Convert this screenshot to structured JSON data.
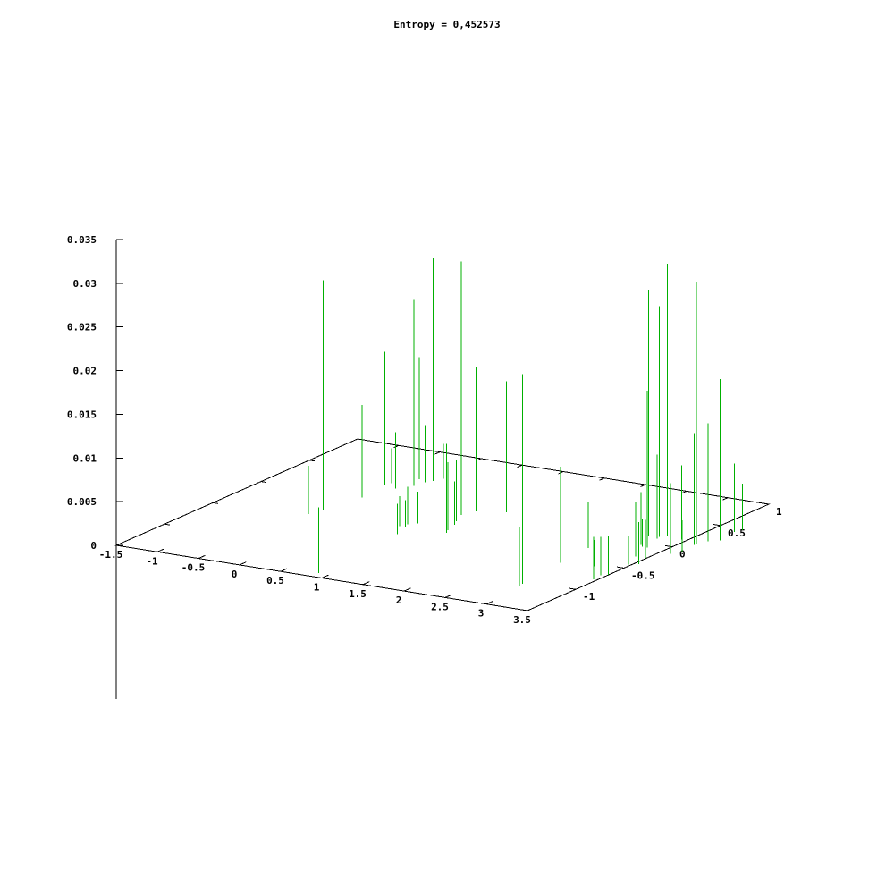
{
  "chart_data": {
    "type": "impulse-3d",
    "title": "Entropy = 0,452573",
    "xlabel": "",
    "ylabel": "",
    "zlabel": "",
    "x_ticks": [
      -1.5,
      -1,
      -0.5,
      0,
      0.5,
      1,
      1.5,
      2,
      2.5,
      3,
      3.5
    ],
    "x_tick_labels": [
      "-1.5",
      "-1",
      "-0.5",
      "0",
      "0.5",
      "1",
      "1.5",
      "2",
      "2.5",
      "3",
      "3.5"
    ],
    "y_ticks": [
      -1.5,
      -1,
      -0.5,
      0,
      0.5,
      1
    ],
    "y_tick_labels": [
      "",
      "-1",
      "-0.5",
      "0",
      "0.5",
      "1"
    ],
    "z_ticks": [
      0,
      0.005,
      0.01,
      0.015,
      0.02,
      0.025,
      0.03,
      0.035
    ],
    "z_tick_labels": [
      "0",
      "0.005",
      "0.01",
      "0.015",
      "0.02",
      "0.025",
      "0.03",
      "0.035"
    ],
    "xlim": [
      -1.5,
      3.5
    ],
    "ylim": [
      -1.5,
      1
    ],
    "zlim": [
      0,
      0.035
    ],
    "series": [
      {
        "color": "#00b000",
        "points": [
          {
            "x": 0.87,
            "y": -1.42,
            "z": 0.0075
          },
          {
            "x": -0.37,
            "y": -0.32,
            "z": 0.0263
          },
          {
            "x": -0.42,
            "y": -0.43,
            "z": 0.0055
          },
          {
            "x": -0.27,
            "y": 0.0,
            "z": 0.0106
          },
          {
            "x": -0.31,
            "y": 0.27,
            "z": 0.0153
          },
          {
            "x": -0.3,
            "y": 0.33,
            "z": 0.004
          },
          {
            "x": -0.16,
            "y": 0.25,
            "z": 0.0064
          },
          {
            "x": -0.13,
            "y": 0.47,
            "z": 0.014
          },
          {
            "x": -0.04,
            "y": 0.34,
            "z": 0.0213
          },
          {
            "x": -0.02,
            "y": 0.44,
            "z": 0.0065
          },
          {
            "x": 0.03,
            "y": 0.48,
            "z": 0.0255
          },
          {
            "x": 0.07,
            "y": 0.55,
            "z": 0.004
          },
          {
            "x": 0.64,
            "y": -0.39,
            "z": 0.0034
          },
          {
            "x": 0.68,
            "y": -0.34,
            "z": 0.0043
          },
          {
            "x": 0.7,
            "y": -0.38,
            "z": 0.003
          },
          {
            "x": 0.8,
            "y": 0.01,
            "z": 0.0183
          },
          {
            "x": 0.75,
            "y": -0.29,
            "z": 0.0036
          },
          {
            "x": 0.79,
            "y": -0.54,
            "z": 0.0035
          },
          {
            "x": 0.97,
            "y": -0.03,
            "z": 0.029
          },
          {
            "x": 1.05,
            "y": -0.15,
            "z": 0.007
          },
          {
            "x": 1.03,
            "y": 0.07,
            "z": 0.0166
          },
          {
            "x": 1.11,
            "y": -0.22,
            "z": 0.005
          },
          {
            "x": 1.32,
            "y": 0.14,
            "z": 0.015
          },
          {
            "x": 1.2,
            "y": -0.38,
            "z": 0.0102
          },
          {
            "x": 1.16,
            "y": -0.33,
            "z": 0.0078
          },
          {
            "x": 2.91,
            "y": -1.05,
            "z": 0.024
          },
          {
            "x": 2.93,
            "y": -1.1,
            "z": 0.0068
          },
          {
            "x": 2.82,
            "y": -0.58,
            "z": 0.011
          },
          {
            "x": 2.77,
            "y": -0.25,
            "z": 0.0052
          },
          {
            "x": 3.2,
            "y": -0.55,
            "z": 0.003
          },
          {
            "x": 3.07,
            "y": 0.12,
            "z": 0.0282
          },
          {
            "x": 3.03,
            "y": 0.14,
            "z": 0.0165
          },
          {
            "x": 3.18,
            "y": 0.14,
            "z": 0.0264
          },
          {
            "x": 3.24,
            "y": 0.17,
            "z": 0.0312
          },
          {
            "x": 3.2,
            "y": 0.1,
            "z": 0.0096
          },
          {
            "x": 3.18,
            "y": -0.05,
            "z": 0.006
          },
          {
            "x": 3.23,
            "y": -0.08,
            "z": 0.0032
          },
          {
            "x": 3.29,
            "y": -0.08,
            "z": 0.0045
          },
          {
            "x": 3.3,
            "y": 0.15,
            "z": 0.0047
          },
          {
            "x": 3.44,
            "y": 0.15,
            "z": 0.0085
          },
          {
            "x": 3.43,
            "y": 0.04,
            "z": 0.007
          },
          {
            "x": 3.37,
            "y": -0.27,
            "z": 0.0062
          },
          {
            "x": 3.47,
            "y": -0.43,
            "z": 0.0033
          },
          {
            "x": 3.49,
            "y": -0.27,
            "z": 0.0044
          },
          {
            "x": 3.55,
            "y": -0.39,
            "z": 0.0048
          },
          {
            "x": 3.44,
            "y": -0.69,
            "z": 0.0044
          },
          {
            "x": 3.46,
            "y": -0.78,
            "z": 0.0049
          },
          {
            "x": 3.5,
            "y": -0.66,
            "z": 0.0045
          },
          {
            "x": 3.66,
            "y": 0.09,
            "z": 0.0128
          },
          {
            "x": 3.65,
            "y": 0.12,
            "z": 0.03
          },
          {
            "x": 3.8,
            "y": 0.24,
            "z": 0.0185
          },
          {
            "x": 3.71,
            "y": 0.19,
            "z": 0.0135
          },
          {
            "x": 3.75,
            "y": 0.43,
            "z": 0.0078
          },
          {
            "x": 3.69,
            "y": -0.06,
            "z": 0.0036
          },
          {
            "x": 3.57,
            "y": 0.36,
            "z": 0.004
          },
          {
            "x": 3.79,
            "y": 0.48,
            "z": 0.0053
          },
          {
            "x": 3.63,
            "y": -0.13,
            "z": 0.0032
          }
        ]
      }
    ]
  }
}
